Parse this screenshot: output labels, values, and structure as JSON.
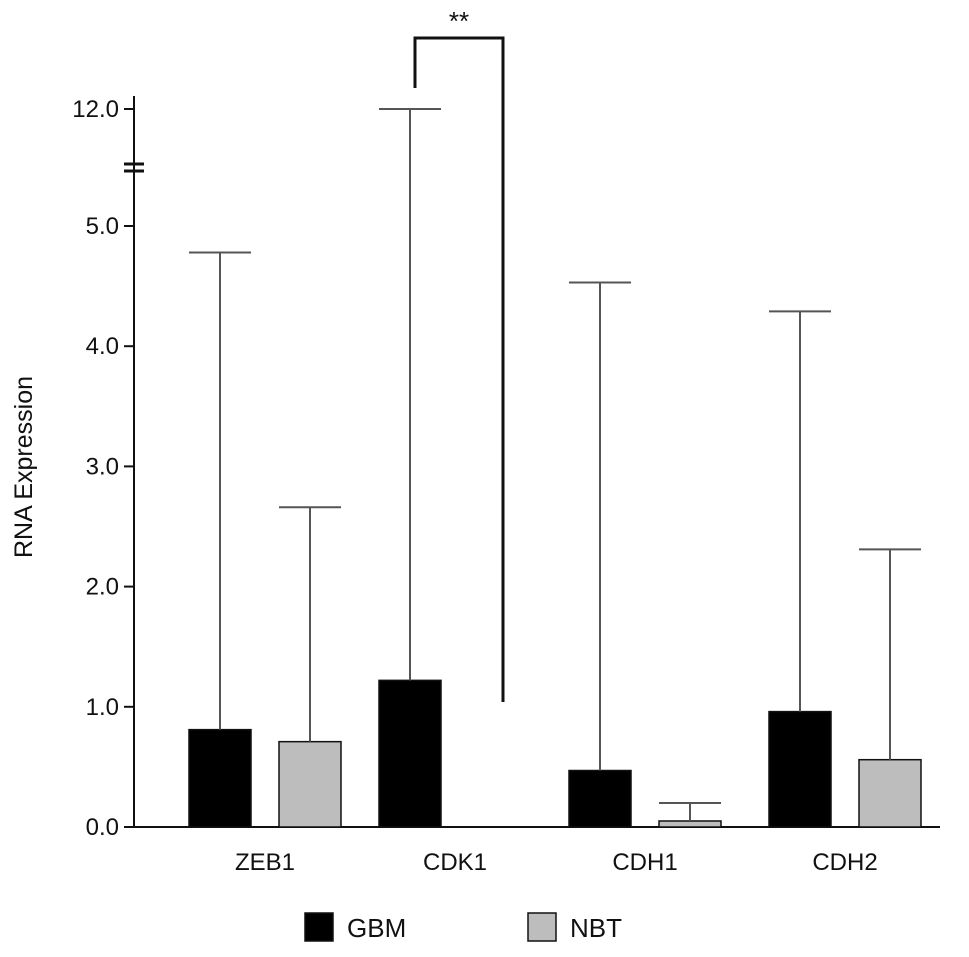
{
  "chart_data": {
    "type": "bar",
    "title": "",
    "xlabel": "",
    "ylabel": "RNA Expression",
    "categories": [
      "ZEB1",
      "CDK1",
      "CDH1",
      "CDH2"
    ],
    "y_ticks": [
      "0.0",
      "1.0",
      "2.0",
      "3.0",
      "4.0",
      "5.0",
      "12.0"
    ],
    "ylim": [
      0,
      12
    ],
    "axis_break": [
      5.0,
      12.0
    ],
    "series": [
      {
        "name": "GBM",
        "color": "#000000",
        "values": [
          0.81,
          1.22,
          0.47,
          0.96
        ],
        "error_upper": [
          4.78,
          12.0,
          4.53,
          4.29
        ]
      },
      {
        "name": "NBT",
        "color": "#bdbdbd",
        "values": [
          0.71,
          0.0,
          0.05,
          0.56
        ],
        "error_upper": [
          2.66,
          0.0,
          0.2,
          2.31
        ]
      }
    ],
    "significance": {
      "label": "**",
      "category": "CDK1"
    },
    "legend": {
      "position": "bottom"
    },
    "grid": false
  }
}
